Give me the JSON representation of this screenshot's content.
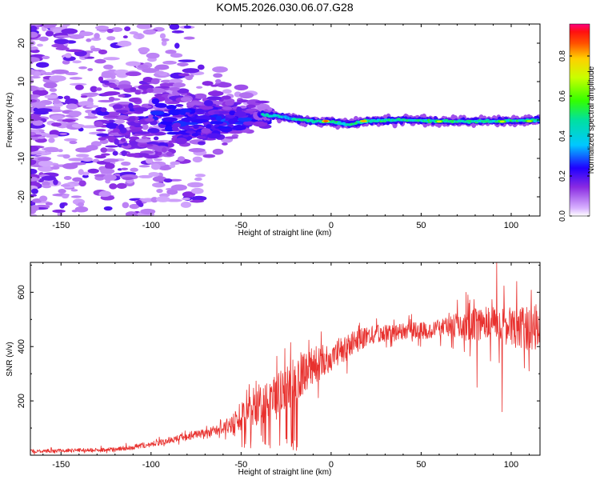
{
  "title": "KOM5.2026.030.06.07.G28",
  "chart_data": [
    {
      "type": "heatmap",
      "name": "spectrogram",
      "xlabel": "Height of straight line (km)",
      "ylabel": "Frequency (Hz)",
      "xlim": [
        -167,
        116
      ],
      "ylim": [
        -25,
        25
      ],
      "xticks": [
        -150,
        -100,
        -50,
        0,
        50,
        100
      ],
      "xtick_labels": [
        "-150",
        "-100",
        "-50",
        "0",
        "50",
        "100"
      ],
      "yticks": [
        -20,
        -10,
        0,
        10,
        20
      ],
      "ytick_labels": [
        "-20",
        "-10",
        "0",
        "10",
        "20"
      ],
      "colorbar": {
        "label": "Normalized spectral amplitude",
        "range": [
          0,
          0.96
        ],
        "ticks": [
          0.0,
          0.2,
          0.4,
          0.6,
          0.8
        ],
        "tick_labels": [
          "0.0",
          "0.2",
          "0.4",
          "0.6",
          "0.8"
        ]
      },
      "ridge": [
        {
          "x": -40,
          "f": 1.5
        },
        {
          "x": -30,
          "f": 1.0
        },
        {
          "x": -20,
          "f": 0.3
        },
        {
          "x": -10,
          "f": -0.3
        },
        {
          "x": 0,
          "f": -0.5
        },
        {
          "x": 10,
          "f": -1.2
        },
        {
          "x": 20,
          "f": -0.2
        },
        {
          "x": 40,
          "f": 0.0
        },
        {
          "x": 60,
          "f": -0.3
        },
        {
          "x": 80,
          "f": -0.4
        },
        {
          "x": 100,
          "f": -0.2
        },
        {
          "x": 116,
          "f": 0.0
        }
      ],
      "peaks": [
        {
          "x": -3,
          "f": -0.3,
          "amp": 0.9
        },
        {
          "x": 18,
          "f": -0.3,
          "amp": 0.85
        },
        {
          "x": 60,
          "f": -0.4,
          "amp": 0.75
        },
        {
          "x": 95,
          "f": -0.4,
          "amp": 0.75
        },
        {
          "x": 110,
          "f": -0.3,
          "amp": 0.7
        }
      ]
    },
    {
      "type": "line",
      "name": "snr",
      "xlabel": "Height of straight line (km)",
      "ylabel": "SNR (v/v)",
      "xlim": [
        -167,
        116
      ],
      "ylim": [
        0,
        710
      ],
      "xticks": [
        -150,
        -100,
        -50,
        0,
        50,
        100
      ],
      "xtick_labels": [
        "-150",
        "-100",
        "-50",
        "0",
        "50",
        "100"
      ],
      "yticks": [
        200,
        400,
        600
      ],
      "ytick_labels": [
        "200",
        "400",
        "600"
      ],
      "color": "#e8312e",
      "trend": {
        "x": [
          -167,
          -120,
          -100,
          -80,
          -65,
          -55,
          -45,
          -35,
          -25,
          -15,
          0,
          15,
          25,
          40,
          55,
          70,
          80,
          95,
          105,
          116
        ],
        "y": [
          15,
          20,
          40,
          70,
          90,
          115,
          160,
          195,
          245,
          310,
          365,
          420,
          445,
          455,
          460,
          475,
          480,
          480,
          470,
          470
        ]
      },
      "spread": {
        "x": [
          -167,
          -100,
          -60,
          -50,
          -30,
          -20,
          0,
          30,
          60,
          75,
          116
        ],
        "y": [
          8,
          12,
          25,
          60,
          110,
          110,
          70,
          40,
          40,
          70,
          110
        ]
      },
      "spikes": [
        {
          "x": 92,
          "y": 710
        },
        {
          "x": 103,
          "y": 640
        },
        {
          "x": 95,
          "y": 160
        },
        {
          "x": 110,
          "y": 310
        },
        {
          "x": 81,
          "y": 250
        },
        {
          "x": 80,
          "y": 540
        },
        {
          "x": 75,
          "y": 600
        },
        {
          "x": -47,
          "y": 240
        },
        {
          "x": -28,
          "y": 310
        },
        {
          "x": -21,
          "y": 20
        },
        {
          "x": -40,
          "y": 260
        },
        {
          "x": -25,
          "y": 60
        }
      ]
    }
  ]
}
